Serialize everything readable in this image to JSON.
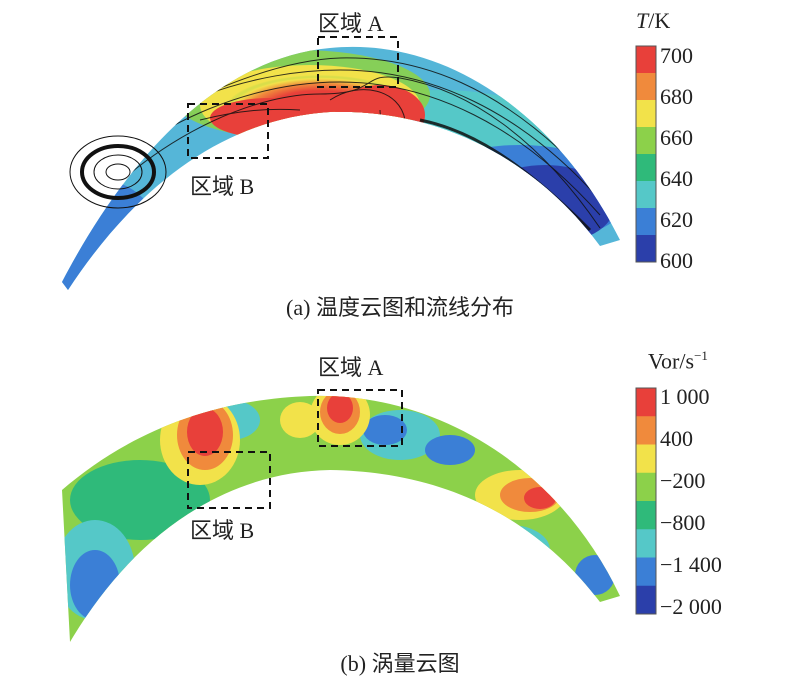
{
  "panel_a": {
    "caption": "(a) 温度云图和流线分布",
    "region_a": "区域 A",
    "region_b": "区域 B",
    "colorbar": {
      "symbol": "T",
      "unit": "/K",
      "ticks": [
        "700",
        "680",
        "660",
        "640",
        "620",
        "600"
      ],
      "colors": [
        "#e8403a",
        "#f08a3c",
        "#f2e24a",
        "#8cd14a",
        "#2fba7a",
        "#55c8c8",
        "#3b7fd6",
        "#2b3faa"
      ]
    }
  },
  "panel_b": {
    "caption": "(b) 涡量云图",
    "region_a": "区域 A",
    "region_b": "区域 B",
    "colorbar": {
      "base": "Vor/s",
      "exponent": "−1",
      "ticks": [
        "1 000",
        "400",
        "−200",
        "−800",
        "−1 400",
        "−2 000"
      ],
      "colors": [
        "#e8403a",
        "#f08a3c",
        "#f2e24a",
        "#8cd14a",
        "#2fba7a",
        "#55c8c8",
        "#3b7fd6",
        "#2b3faa"
      ]
    }
  }
}
